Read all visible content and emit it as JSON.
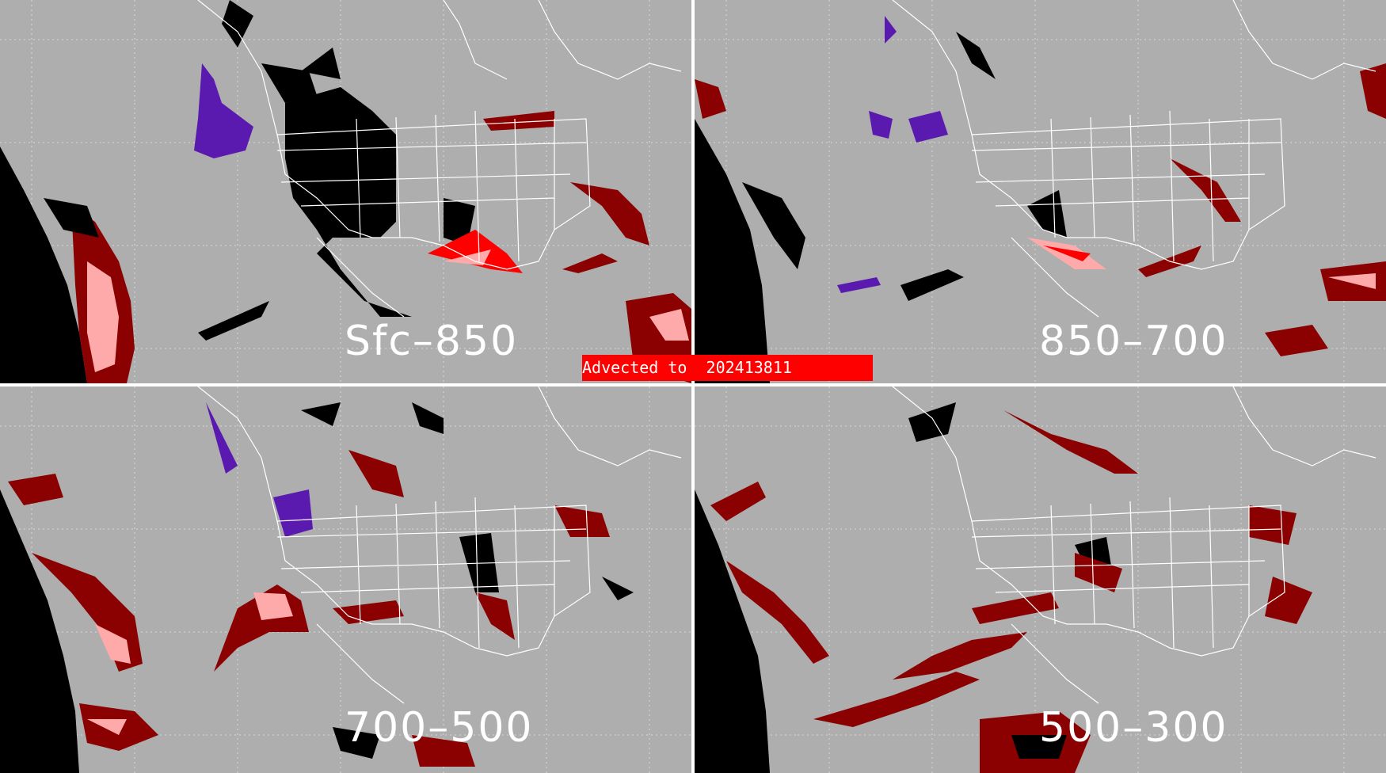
{
  "banner": {
    "text": "Advected to  202413811"
  },
  "panels": [
    {
      "label": "Sfc–850"
    },
    {
      "label": "850–700"
    },
    {
      "label": "700–500"
    },
    {
      "label": "500–300"
    }
  ],
  "colors": {
    "background": "#aeaeae",
    "clear": "#000000",
    "dark_red": "#8b0000",
    "red": "#ff0000",
    "pink": "#ffaaaa",
    "purple": "#5a1ab0",
    "boundaries": "#ffffff"
  }
}
